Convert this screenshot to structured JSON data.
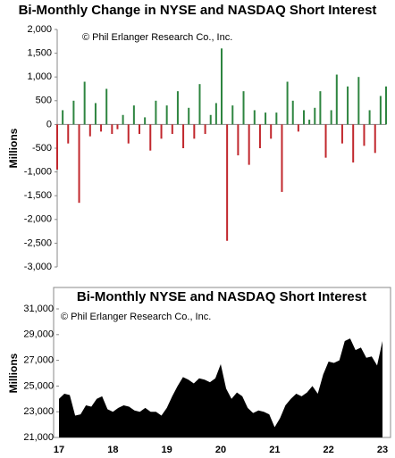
{
  "chart_data": [
    {
      "type": "bar",
      "title": "Bi-Monthly Change in NYSE and NASDAQ Short Interest",
      "annotation": "© Phil Erlanger Research Co., Inc.",
      "y_label": "Millions",
      "x": [
        17.0,
        17.1,
        17.2,
        17.3,
        17.4,
        17.5,
        17.6,
        17.7,
        17.8,
        17.9,
        18.0,
        18.1,
        18.2,
        18.3,
        18.4,
        18.5,
        18.6,
        18.7,
        18.8,
        18.9,
        19.0,
        19.1,
        19.2,
        19.3,
        19.4,
        19.5,
        19.6,
        19.7,
        19.8,
        19.9,
        20.0,
        20.1,
        20.2,
        20.3,
        20.4,
        20.5,
        20.6,
        20.7,
        20.8,
        20.9,
        21.0,
        21.1,
        21.2,
        21.3,
        21.4,
        21.5,
        21.6,
        21.7,
        21.8,
        21.9,
        22.0,
        22.1,
        22.2,
        22.3,
        22.4,
        22.5,
        22.6,
        22.7,
        22.8,
        22.9,
        23.0
      ],
      "values": [
        -950,
        300,
        -400,
        500,
        -1650,
        900,
        -250,
        450,
        -150,
        750,
        -200,
        -100,
        200,
        -400,
        400,
        -200,
        150,
        -550,
        500,
        -300,
        400,
        -200,
        700,
        -500,
        350,
        -300,
        850,
        -200,
        200,
        450,
        1600,
        -2450,
        400,
        -650,
        700,
        -850,
        300,
        -500,
        250,
        -300,
        250,
        -1420,
        900,
        500,
        -150,
        300,
        100,
        350,
        700,
        -700,
        300,
        1050,
        -400,
        800,
        -800,
        1000,
        -450,
        300,
        -600,
        600,
        800
      ],
      "color": "#2e8540",
      "negative_color": "#c1272d",
      "xlim": [
        17,
        23
      ],
      "ylim": [
        -3000,
        2000
      ],
      "yticks": [
        {
          "value": -3000,
          "label": "-3,000"
        },
        {
          "value": -2500,
          "label": "-2,500"
        },
        {
          "value": -2000,
          "label": "-2,000"
        },
        {
          "value": -1500,
          "label": "-1,500"
        },
        {
          "value": -1000,
          "label": "-1,000"
        },
        -500,
        0,
        500,
        {
          "value": 1000,
          "label": "1,000"
        },
        {
          "value": 1500,
          "label": "1,500"
        },
        {
          "value": 2000,
          "label": "2,000"
        }
      ]
    },
    {
      "type": "area",
      "title": "Bi-Monthly NYSE and NASDAQ Short Interest",
      "annotation": "© Phil Erlanger Research Co., Inc.",
      "y_label": "Millions",
      "x": [
        17.0,
        17.1,
        17.2,
        17.3,
        17.4,
        17.5,
        17.6,
        17.7,
        17.8,
        17.9,
        18.0,
        18.1,
        18.2,
        18.3,
        18.4,
        18.5,
        18.6,
        18.7,
        18.8,
        18.9,
        19.0,
        19.1,
        19.2,
        19.3,
        19.4,
        19.5,
        19.6,
        19.7,
        19.8,
        19.9,
        20.0,
        20.1,
        20.2,
        20.3,
        20.4,
        20.5,
        20.6,
        20.7,
        20.8,
        20.9,
        21.0,
        21.1,
        21.2,
        21.3,
        21.4,
        21.5,
        21.6,
        21.7,
        21.8,
        21.9,
        22.0,
        22.1,
        22.2,
        22.3,
        22.4,
        22.5,
        22.6,
        22.7,
        22.8,
        22.9,
        23.0
      ],
      "values": [
        24000,
        24400,
        24300,
        22700,
        22800,
        23500,
        23400,
        24000,
        24200,
        23200,
        23000,
        23300,
        23500,
        23400,
        23100,
        23000,
        23300,
        23000,
        23000,
        22700,
        23300,
        24200,
        25000,
        25700,
        25500,
        25200,
        25600,
        25500,
        25300,
        25600,
        26700,
        24800,
        24000,
        24500,
        24200,
        23300,
        22900,
        23100,
        23000,
        22800,
        21800,
        22500,
        23500,
        24000,
        24400,
        24200,
        24500,
        25000,
        24400,
        25900,
        26900,
        26800,
        27000,
        28500,
        28700,
        27800,
        28000,
        27200,
        27300,
        26600,
        28500
      ],
      "color": "#000000",
      "xlim": [
        17,
        23
      ],
      "xticks": [
        17,
        18,
        19,
        20,
        21,
        22,
        23
      ],
      "ylim": [
        21000,
        31000
      ],
      "yticks": [
        {
          "value": 21000,
          "label": "21,000"
        },
        {
          "value": 23000,
          "label": "23,000"
        },
        {
          "value": 25000,
          "label": "25,000"
        },
        {
          "value": 27000,
          "label": "27,000"
        },
        {
          "value": 29000,
          "label": "29,000"
        },
        {
          "value": 31000,
          "label": "31,000"
        }
      ]
    }
  ]
}
